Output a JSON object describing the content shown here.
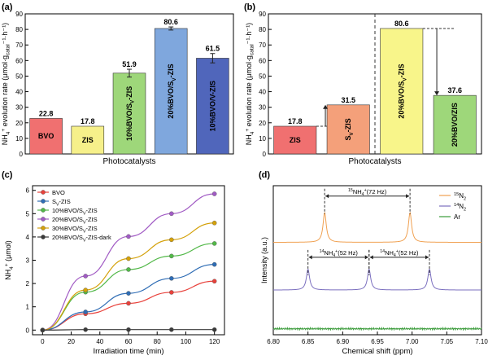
{
  "chart_data": [
    {
      "panel": "a",
      "type": "bar",
      "title": "",
      "xlabel": "Photocatalysts",
      "ylabel": "NH4+ evolution rate (μmol·g_catal⁻¹·h⁻¹)",
      "ylim": [
        0,
        90
      ],
      "yticks": [
        0,
        10,
        20,
        30,
        40,
        50,
        60,
        70,
        80,
        90
      ],
      "ytick_labels": [
        "0",
        "10",
        "20",
        "30",
        "40",
        "50",
        "60",
        "70",
        "80",
        "90"
      ],
      "categories": [
        "BVO",
        "ZIS",
        "10%BVO/SV-ZIS",
        "20%BVO/SV-ZIS",
        "10%BVO/V-ZIS"
      ],
      "bar_text": [
        "BVO",
        "ZIS",
        "10%BVO/S",
        "20%BVO/S",
        "10%BVO/V"
      ],
      "bar_text_sub": [
        "",
        "",
        "V",
        "V",
        ""
      ],
      "bar_text_tail": [
        "",
        "",
        "-ZIS",
        "-ZIS",
        "-ZIS"
      ],
      "values": [
        22.8,
        17.8,
        51.9,
        80.6,
        61.5
      ],
      "errors": [
        0,
        0,
        2.5,
        1.0,
        3.0
      ],
      "value_labels": [
        "22.8",
        "17.8",
        "51.9",
        "80.6",
        "61.5"
      ],
      "colors": [
        "#f07070",
        "#f6f08a",
        "#9ed77a",
        "#7fa7dd",
        "#5066bb"
      ],
      "value_label_color": "#2a3f8f"
    },
    {
      "panel": "b",
      "type": "bar",
      "title": "",
      "xlabel": "Photocatalysts",
      "ylabel": "NH4+ evolution rate (μmol·g_catal⁻¹·h⁻¹)",
      "ylim": [
        0,
        90
      ],
      "yticks": [
        0,
        10,
        20,
        30,
        40,
        50,
        60,
        70,
        80,
        90
      ],
      "ytick_labels": [
        "0",
        "10",
        "20",
        "30",
        "40",
        "50",
        "60",
        "70",
        "80",
        "90"
      ],
      "categories": [
        "ZIS",
        "SV-ZIS",
        "20%BVO/SV-ZIS",
        "20%BVO/ZIS"
      ],
      "bar_text": [
        "ZIS",
        "S",
        "20%BVO/S",
        "20%BVO/ZIS"
      ],
      "bar_text_sub": [
        "",
        "V",
        "V",
        ""
      ],
      "bar_text_tail": [
        "",
        "-ZIS",
        "-ZIS",
        ""
      ],
      "values": [
        17.8,
        31.5,
        80.6,
        37.6
      ],
      "value_labels": [
        "17.8",
        "31.5",
        "80.6",
        "37.6"
      ],
      "colors": [
        "#f07070",
        "#f4a07a",
        "#f8f58a",
        "#9ed77a"
      ],
      "value_label_color": "#2a3f8f"
    },
    {
      "panel": "c",
      "type": "line",
      "title": "",
      "xlabel": "Irradiation time (min)",
      "ylabel": "NH4+ (μmol)",
      "xlim": [
        -7,
        127
      ],
      "ylim": [
        -0.2,
        6.2
      ],
      "xticks": [
        0,
        20,
        40,
        60,
        80,
        100,
        120
      ],
      "xtick_labels": [
        "0",
        "20",
        "40",
        "60",
        "80",
        "100",
        "120"
      ],
      "yticks": [
        0,
        1,
        2,
        3,
        4,
        5,
        6
      ],
      "ytick_labels": [
        "0",
        "1",
        "2",
        "3",
        "4",
        "5",
        "6"
      ],
      "x": [
        0,
        30,
        60,
        90,
        120
      ],
      "legend_position": "top-left",
      "series": [
        {
          "name": "BVO",
          "name_main": "BVO",
          "name_sub": "",
          "name_tail": "",
          "color": "#e8413b",
          "values": [
            0,
            0.7,
            1.15,
            1.62,
            2.1
          ]
        },
        {
          "name": "SV-ZIS",
          "name_main": "S",
          "name_sub": "V",
          "name_tail": "-ZIS",
          "color": "#2f6db5",
          "values": [
            0,
            0.78,
            1.58,
            2.22,
            2.82
          ]
        },
        {
          "name": "10%BVO/SV-ZIS",
          "name_main": "10%BVO/S",
          "name_sub": "V",
          "name_tail": "-ZIS",
          "color": "#52b848",
          "values": [
            0,
            1.63,
            2.6,
            3.18,
            3.72
          ]
        },
        {
          "name": "20%BVO/SV-ZIS",
          "name_main": "20%BVO/S",
          "name_sub": "V",
          "name_tail": "-ZIS",
          "color": "#a15bc4",
          "values": [
            0,
            2.32,
            4.02,
            5.0,
            5.85
          ]
        },
        {
          "name": "30%BVO/SV-ZIS",
          "name_main": "30%BVO/S",
          "name_sub": "V",
          "name_tail": "-ZIS",
          "color": "#d4a10a",
          "values": [
            0,
            1.72,
            3.07,
            3.88,
            4.6
          ]
        },
        {
          "name": "20%BVO/SV-ZIS-dark",
          "name_main": "20%BVO/S",
          "name_sub": "V",
          "name_tail": "-ZIS-dark",
          "color": "#3a3a3a",
          "values": [
            0,
            0.02,
            0.02,
            0.02,
            0.02
          ]
        }
      ]
    },
    {
      "panel": "d",
      "type": "line",
      "title": "",
      "xlabel": "Chemical shift (ppm)",
      "ylabel": "Intensity (a.u.)",
      "xlim": [
        6.8,
        7.1
      ],
      "xticks": [
        6.8,
        6.85,
        6.9,
        6.95,
        7.0,
        7.05,
        7.1
      ],
      "xtick_labels": [
        "6.80",
        "6.85",
        "6.90",
        "6.95",
        "7.00",
        "7.05",
        "7.10"
      ],
      "legend_position": "top-right",
      "series": [
        {
          "name": "15N2",
          "name_sup": "15",
          "name_main": "N",
          "name_sub": "2",
          "color": "#f0a050",
          "baseline": 0.62,
          "peaks": [
            6.874,
            6.997
          ],
          "peak_height": 0.2
        },
        {
          "name": "14N2",
          "name_sup": "14",
          "name_main": "N",
          "name_sub": "2",
          "color": "#7b6fbf",
          "baseline": 0.3,
          "peaks": [
            6.85,
            6.938,
            7.025
          ],
          "peak_height": 0.14
        },
        {
          "name": "Ar",
          "name_sup": "",
          "name_main": "Ar",
          "name_sub": "",
          "color": "#3a9b3a",
          "baseline": 0.04,
          "peaks": [],
          "peak_height": 0
        }
      ],
      "annotations": [
        {
          "text_sup": "15",
          "text_main": "NH",
          "text_sub": "4",
          "text_tail": "(72 Hz)",
          "from": 6.874,
          "to": 6.997,
          "level": 0.93
        },
        {
          "text_sup": "14",
          "text_main": "NH",
          "text_sub": "4",
          "text_tail": "(52 Hz)",
          "from": 6.85,
          "to": 6.938,
          "level": 0.52
        },
        {
          "text_sup": "14",
          "text_main": "NH",
          "text_sub": "4",
          "text_tail": "(52 Hz)",
          "from": 6.938,
          "to": 7.025,
          "level": 0.52
        }
      ]
    }
  ],
  "panel_labels": [
    "(a)",
    "(b)",
    "(c)",
    "(d)"
  ]
}
